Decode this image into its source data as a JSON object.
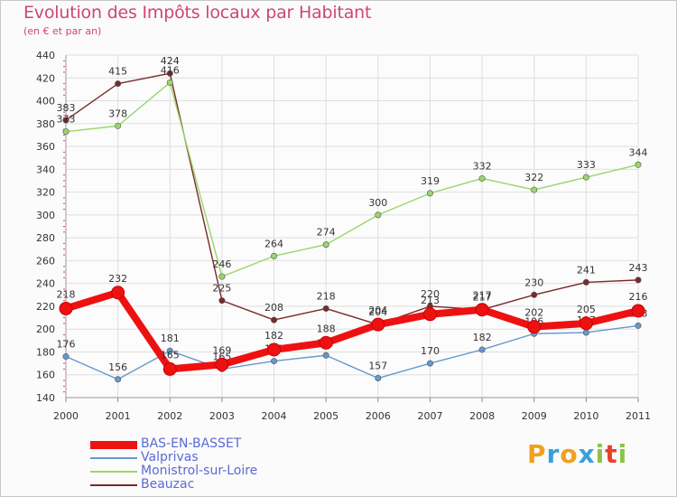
{
  "title": "Evolution des Impôts locaux par Habitant",
  "subtitle": "(en € et par an)",
  "logo": {
    "letters": [
      "P",
      "r",
      "o",
      "x",
      "i",
      "t",
      "i"
    ],
    "colors": [
      "#f0a01e",
      "#3aa0d8",
      "#f0a01e",
      "#3aa0d8",
      "#8bc34a",
      "#e8402a",
      "#8bc34a"
    ]
  },
  "chart_data": {
    "type": "line",
    "x": [
      "2000",
      "2001",
      "2002",
      "2003",
      "2004",
      "2005",
      "2006",
      "2007",
      "2008",
      "2009",
      "2010",
      "2011"
    ],
    "ylim": [
      140,
      440
    ],
    "yticks": [
      140,
      160,
      180,
      200,
      220,
      240,
      260,
      280,
      300,
      320,
      340,
      360,
      380,
      400,
      420,
      440
    ],
    "grid": true,
    "legend_position": "bottom-left",
    "series": [
      {
        "name": "Beauzac",
        "color": "#7a2a2a",
        "values": [
          383,
          415,
          424,
          225,
          208,
          218,
          204,
          220,
          217,
          230,
          241,
          243
        ]
      },
      {
        "name": "Monistrol-sur-Loire",
        "color": "#9ad66a",
        "values": [
          373,
          378,
          416,
          246,
          264,
          274,
          300,
          319,
          332,
          322,
          333,
          344
        ]
      },
      {
        "name": "Valprivas",
        "color": "#6699cc",
        "values": [
          176,
          156,
          181,
          165,
          172,
          177,
          157,
          170,
          182,
          196,
          197,
          203
        ]
      },
      {
        "name": "BAS-EN-BASSET",
        "color": "#ee1111",
        "values": [
          218,
          232,
          165,
          169,
          182,
          188,
          204,
          213,
          217,
          202,
          205,
          216
        ]
      }
    ],
    "legend_order": [
      "BAS-EN-BASSET",
      "Valprivas",
      "Monistrol-sur-Loire",
      "Beauzac"
    ]
  }
}
